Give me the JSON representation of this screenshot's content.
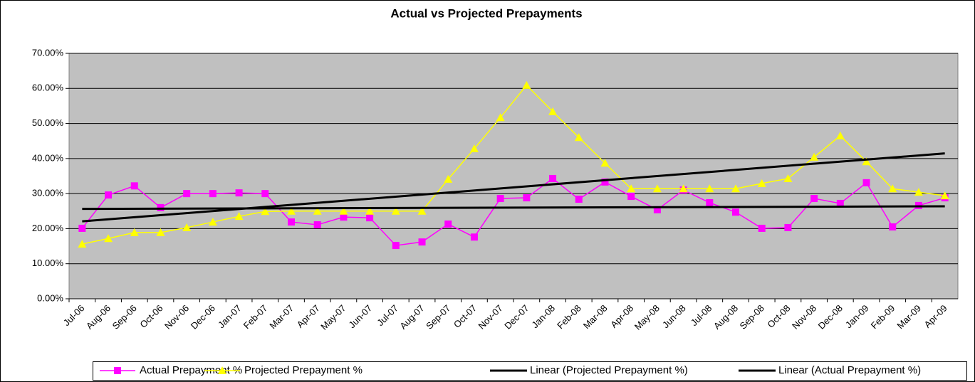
{
  "chart_data": {
    "type": "line",
    "title": "Actual vs Projected Prepayments",
    "categories": [
      "Jul-06",
      "Aug-06",
      "Sep-06",
      "Oct-06",
      "Nov-06",
      "Dec-06",
      "Jan-07",
      "Feb-07",
      "Mar-07",
      "Apr-07",
      "May-07",
      "Jun-07",
      "Jul-07",
      "Aug-07",
      "Sep-07",
      "Oct-07",
      "Nov-07",
      "Dec-07",
      "Jan-08",
      "Feb-08",
      "Mar-08",
      "Apr-08",
      "May-08",
      "Jun-08",
      "Jul-08",
      "Aug-08",
      "Sep-08",
      "Oct-08",
      "Nov-08",
      "Dec-08",
      "Jan-09",
      "Feb-09",
      "Mar-09",
      "Apr-09"
    ],
    "series": [
      {
        "name": "Actual Prepayment %",
        "color": "#ff00ff",
        "marker": "square",
        "values": [
          20.1,
          29.6,
          32.2,
          26.0,
          30.0,
          30.0,
          30.2,
          30.0,
          21.9,
          21.1,
          23.3,
          23.1,
          15.2,
          16.2,
          21.3,
          17.6,
          28.6,
          28.8,
          34.3,
          28.4,
          33.3,
          29.2,
          25.4,
          31.0,
          27.4,
          24.7,
          20.1,
          20.3,
          28.6,
          27.2,
          33.1,
          20.5,
          26.6,
          28.8
        ]
      },
      {
        "name": "Projected Prepayment %",
        "color": "#ffff00",
        "marker": "triangle",
        "values": [
          15.6,
          17.2,
          18.9,
          18.9,
          20.3,
          21.9,
          23.5,
          24.9,
          25.0,
          25.0,
          25.0,
          25.0,
          25.0,
          25.0,
          34.1,
          42.8,
          51.7,
          60.9,
          53.4,
          46.0,
          38.7,
          31.4,
          31.4,
          31.4,
          31.4,
          31.4,
          32.9,
          34.3,
          40.4,
          46.5,
          39.1,
          31.4,
          30.4,
          29.4
        ]
      }
    ],
    "trendlines": [
      {
        "name": "Linear (Projected Prepayment %)",
        "color": "#000000",
        "series": 1
      },
      {
        "name": "Linear (Actual Prepayment %)",
        "color": "#000000",
        "series": 0
      }
    ],
    "ylim": [
      0,
      70
    ],
    "yticks": [
      {
        "value": 0,
        "label": "0.00%"
      },
      {
        "value": 10,
        "label": "10.00%"
      },
      {
        "value": 20,
        "label": "20.00%"
      },
      {
        "value": 30,
        "label": "30.00%"
      },
      {
        "value": 40,
        "label": "40.00%"
      },
      {
        "value": 50,
        "label": "50.00%"
      },
      {
        "value": 60,
        "label": "60.00%"
      },
      {
        "value": 70,
        "label": "70.00%"
      }
    ],
    "grid": true,
    "plot_background": "#c0c0c0",
    "legend": "bottom"
  }
}
